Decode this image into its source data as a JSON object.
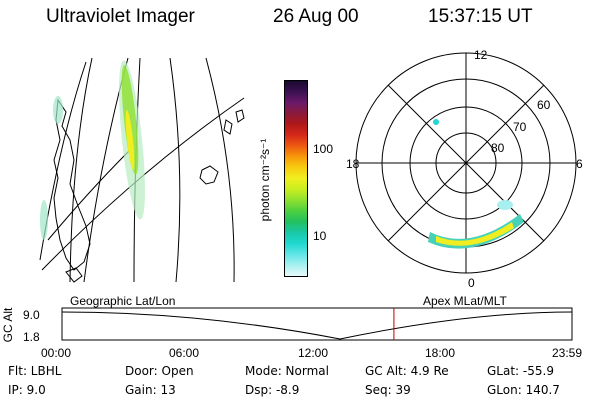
{
  "header": {
    "instrument": "Ultraviolet Imager",
    "date": "26 Aug 00",
    "time": "15:37:15 UT"
  },
  "colorbar": {
    "unit_label": "photon cm⁻²s⁻¹",
    "ticks": [
      "100",
      "10"
    ],
    "colors": [
      "#1a0a2e",
      "#3b1052",
      "#6a1a6a",
      "#8b1a3a",
      "#b01818",
      "#d6281a",
      "#ee5a10",
      "#f79a0a",
      "#f7cd10",
      "#f0ee20",
      "#c8ee20",
      "#8ee030",
      "#4cd040",
      "#22c060",
      "#18c8a8",
      "#20d8d0",
      "#60e6e6",
      "#a8f0f0",
      "#e8fafa"
    ]
  },
  "polar": {
    "mlt_labels": {
      "top": "12",
      "left": "18",
      "right": "6",
      "bottom": "0"
    },
    "lat_labels": [
      "60",
      "70",
      "80"
    ]
  },
  "timeline": {
    "left_title": "Geographic Lat/Lon",
    "right_title": "Apex MLat/MLT",
    "axis_label": "GC Alt",
    "y_ticks": [
      "9.0",
      "1.8"
    ],
    "x_ticks": [
      "00:00",
      "06:00",
      "12:00",
      "18:00",
      "23:59"
    ],
    "current_time_hours": 15.62
  },
  "status": {
    "flt": "Flt: LBHL",
    "door": "Door: Open",
    "mode": "Mode: Normal",
    "gc_alt": "GC Alt: 4.9 Re",
    "glat": "GLat: -55.9",
    "ip": "IP:  9.0",
    "gain": "Gain: 13",
    "dsp": "Dsp:   -8.9",
    "seq": "Seq: 39",
    "glon": "GLon: 140.7"
  }
}
